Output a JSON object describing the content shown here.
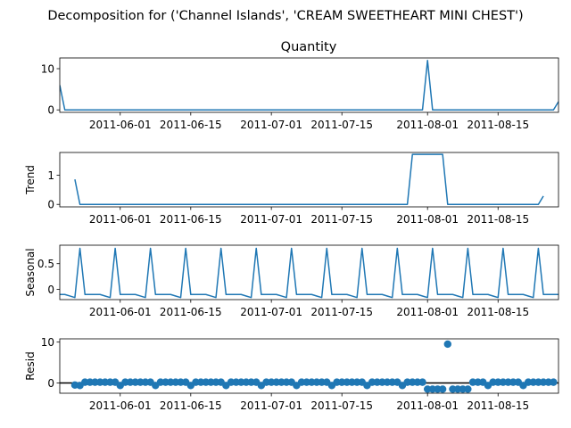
{
  "figure": {
    "suptitle": "Decomposition for ('Channel Islands', 'CREAM SWEETHEART MINI CHEST')"
  },
  "chart_data": [
    {
      "type": "line",
      "title": "Quantity",
      "ylabel": "",
      "color": "#1f77b4",
      "xlim": [
        "2011-05-20",
        "2011-08-27"
      ],
      "ylim": [
        -0.6,
        12.6
      ],
      "yticks": [
        0,
        10
      ],
      "xticks": [
        "2011-06-01",
        "2011-06-15",
        "2011-07-01",
        "2011-07-15",
        "2011-08-01",
        "2011-08-15"
      ],
      "points": [
        [
          "2011-05-20",
          6
        ],
        [
          "2011-05-21",
          0
        ],
        [
          "2011-07-31",
          0
        ],
        [
          "2011-08-01",
          12
        ],
        [
          "2011-08-02",
          0
        ],
        [
          "2011-08-26",
          0
        ],
        [
          "2011-08-27",
          2
        ]
      ]
    },
    {
      "type": "line",
      "title": "",
      "ylabel": "Trend",
      "color": "#1f77b4",
      "xlim": [
        "2011-05-20",
        "2011-08-27"
      ],
      "ylim": [
        -0.085,
        1.78
      ],
      "yticks": [
        0,
        1
      ],
      "xticks": [
        "2011-06-01",
        "2011-06-15",
        "2011-07-01",
        "2011-07-15",
        "2011-08-01",
        "2011-08-15"
      ],
      "points": [
        [
          "2011-05-23",
          0.857
        ],
        [
          "2011-05-24",
          0
        ],
        [
          "2011-07-28",
          0
        ],
        [
          "2011-07-29",
          1.714
        ],
        [
          "2011-08-04",
          1.714
        ],
        [
          "2011-08-05",
          0
        ],
        [
          "2011-08-23",
          0
        ],
        [
          "2011-08-24",
          0.286
        ]
      ]
    },
    {
      "type": "line",
      "title": "",
      "ylabel": "Seasonal",
      "color": "#1f77b4",
      "xlim": [
        "2011-05-20",
        "2011-08-27"
      ],
      "ylim": [
        -0.2,
        0.86
      ],
      "yticks": [
        0.0,
        0.5
      ],
      "xticks": [
        "2011-06-01",
        "2011-06-15",
        "2011-07-01",
        "2011-07-15",
        "2011-08-01",
        "2011-08-15"
      ],
      "season_start": "2011-05-20",
      "period": 7,
      "season_values": [
        -0.1,
        -0.1,
        -0.13,
        -0.16,
        0.8,
        -0.1,
        -0.1
      ]
    },
    {
      "type": "scatter",
      "title": "",
      "ylabel": "Resid",
      "color": "#1f77b4",
      "baseline": 0,
      "xlim": [
        "2011-05-20",
        "2011-08-27"
      ],
      "ylim": [
        -2.5,
        10.8
      ],
      "yticks": [
        0,
        10
      ],
      "xticks": [
        "2011-06-01",
        "2011-06-15",
        "2011-07-01",
        "2011-07-15",
        "2011-08-01",
        "2011-08-15"
      ],
      "start": "2011-05-23",
      "values": [
        -0.5,
        -0.6,
        0.2,
        0.2,
        0.2,
        0.2,
        0.2,
        0.2,
        0.2,
        -0.6,
        0.2,
        0.2,
        0.2,
        0.2,
        0.2,
        0.2,
        -0.6,
        0.2,
        0.2,
        0.2,
        0.2,
        0.2,
        0.2,
        -0.6,
        0.2,
        0.2,
        0.2,
        0.2,
        0.2,
        0.2,
        -0.6,
        0.2,
        0.2,
        0.2,
        0.2,
        0.2,
        0.2,
        -0.6,
        0.2,
        0.2,
        0.2,
        0.2,
        0.2,
        0.2,
        -0.6,
        0.2,
        0.2,
        0.2,
        0.2,
        0.2,
        0.2,
        -0.6,
        0.2,
        0.2,
        0.2,
        0.2,
        0.2,
        0.2,
        -0.6,
        0.2,
        0.2,
        0.2,
        0.2,
        0.2,
        0.2,
        -0.6,
        0.2,
        0.2,
        0.2,
        0.2,
        -1.5,
        -1.5,
        -1.5,
        -1.5,
        9.5,
        -1.5,
        -1.5,
        -1.5,
        -1.5,
        0.2,
        0.2,
        0.2,
        -0.6,
        0.2,
        0.2,
        0.2,
        0.2,
        0.2,
        0.2,
        -0.6,
        0.2,
        0.2,
        0.2,
        0.2,
        0.2,
        0.2
      ]
    }
  ]
}
